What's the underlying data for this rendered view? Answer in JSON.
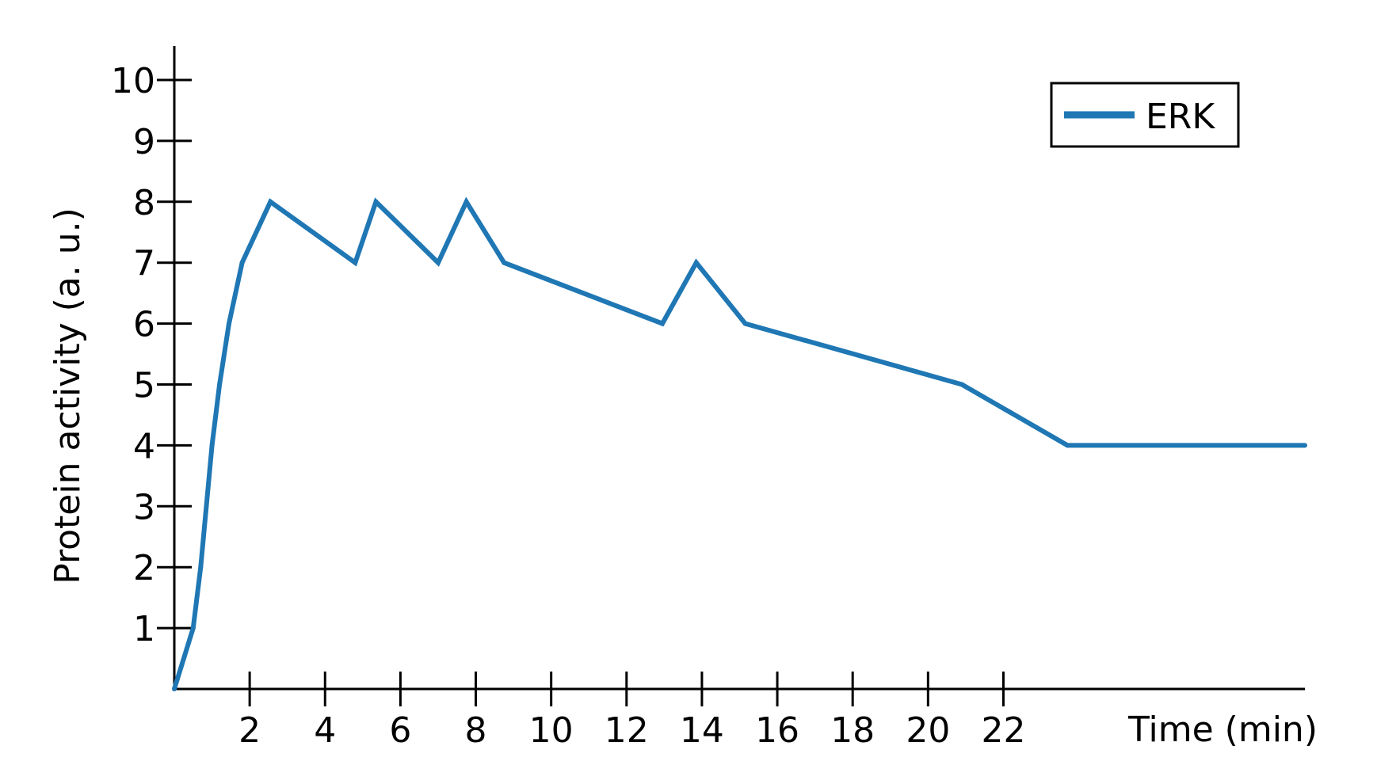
{
  "chart_data": {
    "type": "line",
    "xlabel": "Time (min)",
    "ylabel": "Protein activity (a. u.)",
    "xlim": [
      0,
      30
    ],
    "ylim": [
      0,
      10.5
    ],
    "xticks": [
      2,
      4,
      6,
      8,
      10,
      12,
      14,
      16,
      18,
      20,
      22
    ],
    "xtick_labels": [
      "2",
      "4",
      "6",
      "8",
      "10",
      "12",
      "14",
      "16",
      "18",
      "20",
      "22"
    ],
    "yticks": [
      1,
      2,
      3,
      4,
      5,
      6,
      7,
      8,
      9,
      10
    ],
    "ytick_labels": [
      "1",
      "2",
      "3",
      "4",
      "5",
      "6",
      "7",
      "8",
      "9",
      "10"
    ],
    "grid": false,
    "legend_position": "top-right",
    "series": [
      {
        "name": "ERK",
        "color": "#1f77b4",
        "x": [
          0,
          0.5,
          0.7,
          1.0,
          1.2,
          1.45,
          1.8,
          2.55,
          4.8,
          5.35,
          7.0,
          7.75,
          8.75,
          12.95,
          13.85,
          15.15,
          20.9,
          23.7,
          30.0
        ],
        "y": [
          0,
          1,
          2,
          4,
          5,
          6,
          7,
          8,
          7,
          8,
          7,
          8,
          7,
          6,
          7,
          6,
          5,
          4,
          4
        ]
      }
    ]
  }
}
